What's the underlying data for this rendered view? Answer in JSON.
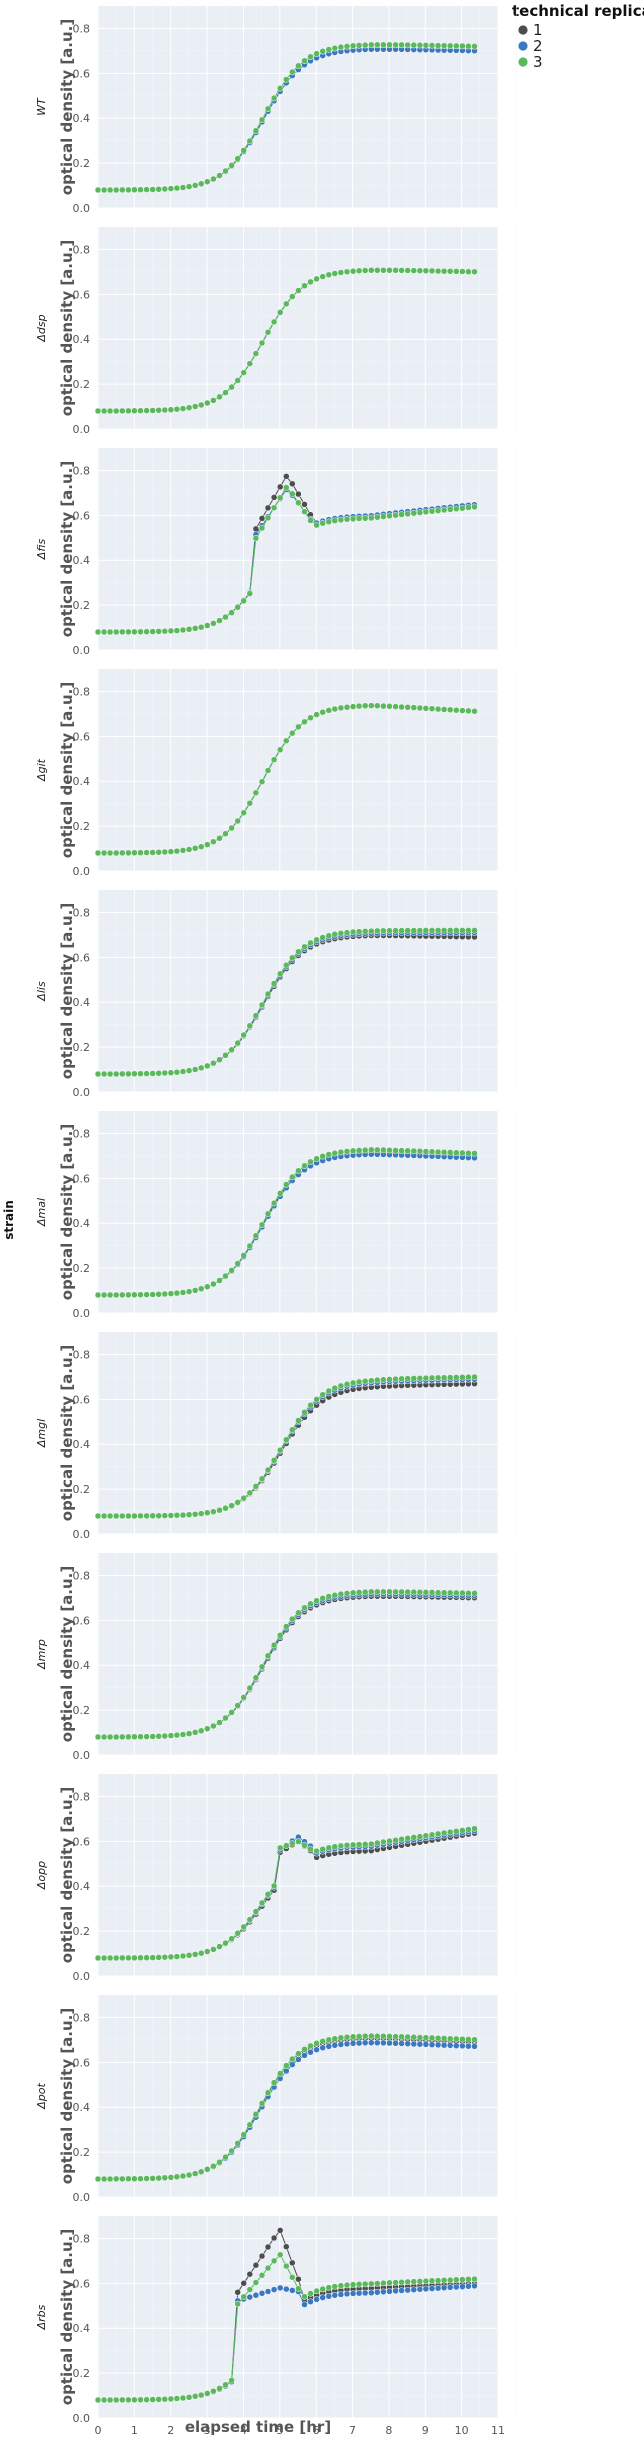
{
  "chart_data": {
    "type": "scatter",
    "layout": "facets stacked vertically, shared x axis",
    "xlabel": "elapsed time [hr]",
    "ylabel": "optical density [a.u.]",
    "facet_label": "strain",
    "xlim": [
      0,
      11
    ],
    "ylim": [
      0,
      0.9
    ],
    "x_ticks": [
      0,
      1,
      2,
      3,
      4,
      5,
      6,
      7,
      8,
      9,
      10,
      11
    ],
    "y_ticks": [
      "0.0",
      "0.2",
      "0.4",
      "0.6",
      "0.8"
    ],
    "grid": true,
    "legend": {
      "title": "technical replicate",
      "position": "top-right, outside plot",
      "entries": [
        "1",
        "2",
        "3"
      ],
      "colors": [
        "#4d4d4d",
        "#3a78c0",
        "#5cb85c"
      ]
    },
    "panels": [
      {
        "strain": "WT",
        "plateau": [
          0.71,
          0.71,
          0.73
        ],
        "late": [
          0.7,
          0.7,
          0.72
        ]
      },
      {
        "strain": "Δdsp",
        "plateau": [
          0.71,
          0.71,
          0.71
        ],
        "late": [
          0.7,
          0.7,
          0.7
        ]
      },
      {
        "strain": "Δfis",
        "plateau": [
          0.6,
          0.6,
          0.59
        ],
        "late": [
          0.65,
          0.65,
          0.64
        ],
        "spike": {
          "x": [
            4.2,
            5.2,
            6.0
          ],
          "y": [
            [
              0.5,
              0.78,
              0.56
            ],
            [
              0.48,
              0.72,
              0.55
            ],
            [
              0.46,
              0.73,
              0.54
            ]
          ]
        }
      },
      {
        "strain": "Δgit",
        "plateau": [
          0.74,
          0.74,
          0.74
        ],
        "late": [
          0.71,
          0.71,
          0.71
        ]
      },
      {
        "strain": "Δlis",
        "plateau": [
          0.7,
          0.71,
          0.72
        ],
        "late": [
          0.69,
          0.71,
          0.72
        ]
      },
      {
        "strain": "Δmal",
        "plateau": [
          0.72,
          0.71,
          0.73
        ],
        "late": [
          0.7,
          0.69,
          0.71
        ]
      },
      {
        "strain": "Δmgl",
        "plateau": [
          0.66,
          0.68,
          0.69
        ],
        "late": [
          0.67,
          0.69,
          0.7
        ]
      },
      {
        "strain": "Δmrp",
        "plateau": [
          0.71,
          0.72,
          0.73
        ],
        "late": [
          0.7,
          0.71,
          0.72
        ]
      },
      {
        "strain": "Δopp",
        "plateau": [
          0.56,
          0.58,
          0.59
        ],
        "late": [
          0.64,
          0.65,
          0.66
        ],
        "spike": {
          "x": [
            5.0,
            5.5,
            6.0
          ],
          "y": [
            [
              0.55,
              0.6,
              0.54
            ],
            [
              0.56,
              0.62,
              0.56
            ],
            [
              0.57,
              0.6,
              0.55
            ]
          ]
        }
      },
      {
        "strain": "Δpot",
        "plateau": [
          0.71,
          0.69,
          0.72
        ],
        "late": [
          0.69,
          0.67,
          0.7
        ]
      },
      {
        "strain": "Δrbs",
        "plateau": [
          0.58,
          0.56,
          0.6
        ],
        "late": [
          0.6,
          0.59,
          0.62
        ],
        "spike": {
          "x": [
            3.8,
            5.0,
            5.6
          ],
          "y": [
            [
              0.55,
              0.84,
              0.58
            ],
            [
              0.52,
              0.58,
              0.56
            ],
            [
              0.5,
              0.73,
              0.55
            ]
          ]
        }
      }
    ]
  }
}
